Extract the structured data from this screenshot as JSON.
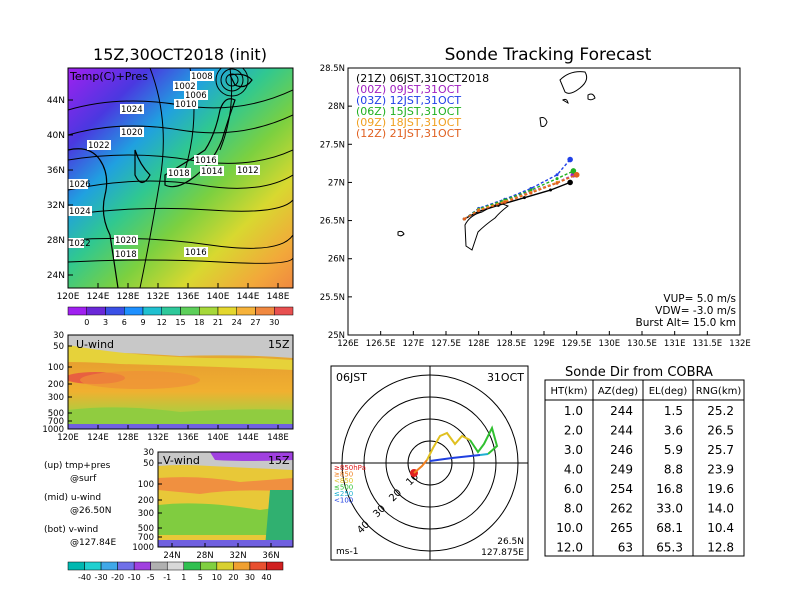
{
  "map_panel": {
    "title": "15Z,30OCT2018 (init)",
    "label": "Temp(C)+Pres",
    "lat_ticks": [
      "44N",
      "40N",
      "36N",
      "32N",
      "28N",
      "24N"
    ],
    "lon_ticks": [
      "120E",
      "124E",
      "128E",
      "132E",
      "136E",
      "140E",
      "144E",
      "148E"
    ],
    "isobar_labels": [
      "1008",
      "1002",
      "1006",
      "1010",
      "1024",
      "1020",
      "1022",
      "1026",
      "1024",
      "1016",
      "1018",
      "1014",
      "1012",
      "1020",
      "1022",
      "1018",
      "1016"
    ],
    "colorbar_ticks": [
      "0",
      "3",
      "6",
      "9",
      "12",
      "15",
      "18",
      "21",
      "24",
      "27",
      "30"
    ],
    "colorbar_colors": [
      "#a020f0",
      "#6a28d8",
      "#3a50e6",
      "#1e90ff",
      "#20c0d0",
      "#2ec89a",
      "#5dcf5a",
      "#a6d83a",
      "#e4d72e",
      "#f6b23a",
      "#f08840",
      "#e85050"
    ]
  },
  "u_panel": {
    "label": "U-wind",
    "time": "15Z",
    "y_ticks": [
      "30",
      "50",
      "100",
      "200",
      "300",
      "500",
      "700",
      "1000"
    ],
    "x_ticks": [
      "120E",
      "124E",
      "128E",
      "132E",
      "136E",
      "140E",
      "144E",
      "148E"
    ]
  },
  "v_panel": {
    "label": "V-wind",
    "time": "15Z",
    "y_ticks": [
      "30",
      "50",
      "100",
      "200",
      "300",
      "500",
      "700",
      "1000"
    ],
    "x_ticks": [
      "24N",
      "28N",
      "32N",
      "36N"
    ]
  },
  "legend_notes": {
    "up": "(up) tmp+pres",
    "up2": "@surf",
    "mid": "(mid) u-wind",
    "mid2": "@26.50N",
    "bot": "(bot) v-wind",
    "bot2": "@127.84E"
  },
  "wind_colorbar": {
    "ticks": [
      "-40",
      "-30",
      "-20",
      "-10",
      "-5",
      "-1",
      "1",
      "5",
      "10",
      "20",
      "30",
      "40"
    ],
    "colors": [
      "#00b8b0",
      "#20d0d0",
      "#40a8e8",
      "#7070e8",
      "#a040e0",
      "#b0b0b0",
      "#d8d8d8",
      "#30c050",
      "#80d040",
      "#d8d030",
      "#f0a030",
      "#e85030",
      "#d02020"
    ]
  },
  "tracking": {
    "title": "Sonde Tracking Forecast",
    "lat_ticks": [
      "28.5N",
      "28N",
      "27.5N",
      "27N",
      "26.5N",
      "26N",
      "25.5N",
      "25N"
    ],
    "lon_ticks": [
      "126E",
      "126.5E",
      "127E",
      "127.5E",
      "128E",
      "128.5E",
      "129E",
      "129.5E",
      "130E",
      "130.5E",
      "131E",
      "131.5E",
      "132E"
    ],
    "legend": [
      {
        "text": "(21Z)  06JST,31OCT2018",
        "color": "#000000"
      },
      {
        "text": "(00Z)  09JST,31OCT",
        "color": "#a020c0"
      },
      {
        "text": "(03Z)  12JST,31OCT",
        "color": "#2040e8"
      },
      {
        "text": "(06Z)  15JST,31OCT",
        "color": "#20b020"
      },
      {
        "text": "(09Z)  18JST,31OCT",
        "color": "#f0a020"
      },
      {
        "text": "(12Z)  21JST,31OCT",
        "color": "#e06020"
      }
    ],
    "params": [
      "VUP=  5.0 m/s",
      "VDW= -3.0 m/s",
      "Burst Alt= 15.0 km"
    ]
  },
  "hodograph": {
    "time": "06JST",
    "date": "31OCT",
    "ring_labels": [
      "10",
      "20",
      "30",
      "40"
    ],
    "unit": "ms-1",
    "lat": "26.5N",
    "lon": "127.875E",
    "level_legend": [
      {
        "text": "≥850hPa",
        "color": "#e02020"
      },
      {
        "text": "≥850",
        "color": "#f08020"
      },
      {
        "text": "<850",
        "color": "#e0c020"
      },
      {
        "text": "≤500",
        "color": "#30c030"
      },
      {
        "text": "≤250",
        "color": "#20b0d0"
      },
      {
        "text": "<100",
        "color": "#2040e0"
      }
    ]
  },
  "chart_data": [
    {
      "type": "line",
      "title": "Sonde Tracking Forecast",
      "xlabel": "",
      "ylabel": "",
      "xlim": [
        126,
        132
      ],
      "ylim": [
        25,
        28.5
      ],
      "series": [
        {
          "name": "(21Z)  06JST,31OCT2018",
          "color": "#000000",
          "x": [
            127.78,
            128.0,
            128.3,
            128.7,
            129.1,
            129.4
          ],
          "y": [
            26.52,
            26.62,
            26.7,
            26.8,
            26.9,
            27.0
          ]
        },
        {
          "name": "(00Z)  09JST,31OCT",
          "color": "#a020c0",
          "x": [
            127.78,
            128.0,
            128.4,
            128.8,
            129.2,
            129.45
          ],
          "y": [
            26.52,
            26.64,
            26.76,
            26.88,
            27.0,
            27.1
          ]
        },
        {
          "name": "(03Z)  12JST,31OCT",
          "color": "#2040e8",
          "x": [
            127.78,
            128.0,
            128.4,
            128.8,
            129.2,
            129.4
          ],
          "y": [
            26.52,
            26.66,
            26.78,
            26.92,
            27.1,
            27.3
          ]
        },
        {
          "name": "(06Z)  15JST,31OCT",
          "color": "#20b020",
          "x": [
            127.78,
            128.0,
            128.4,
            128.8,
            129.2,
            129.45
          ],
          "y": [
            26.52,
            26.65,
            26.77,
            26.9,
            27.05,
            27.15
          ]
        },
        {
          "name": "(09Z)  18JST,31OCT",
          "color": "#f0a020",
          "x": [
            127.78,
            128.0,
            128.4,
            128.8,
            129.2,
            129.5
          ],
          "y": [
            26.52,
            26.64,
            26.75,
            26.87,
            27.0,
            27.1
          ]
        },
        {
          "name": "(12Z)  21JST,31OCT",
          "color": "#e06020",
          "x": [
            127.78,
            128.0,
            128.4,
            128.8,
            129.2,
            129.5
          ],
          "y": [
            26.52,
            26.63,
            26.74,
            26.86,
            26.99,
            27.1
          ]
        }
      ]
    },
    {
      "type": "table",
      "title": "Sonde Dir from COBRA",
      "columns": [
        "HT(km)",
        "AZ(deg)",
        "EL(deg)",
        "RNG(km)"
      ],
      "rows": [
        [
          "1.0",
          "244",
          "1.5",
          "25.2"
        ],
        [
          "2.0",
          "244",
          "3.6",
          "26.5"
        ],
        [
          "3.0",
          "246",
          "5.9",
          "25.7"
        ],
        [
          "4.0",
          "249",
          "8.8",
          "23.9"
        ],
        [
          "6.0",
          "254",
          "16.8",
          "19.6"
        ],
        [
          "8.0",
          "262",
          "33.0",
          "14.0"
        ],
        [
          "10.0",
          "265",
          "68.1",
          "10.4"
        ],
        [
          "12.0",
          "63",
          "65.3",
          "12.8"
        ]
      ]
    }
  ]
}
